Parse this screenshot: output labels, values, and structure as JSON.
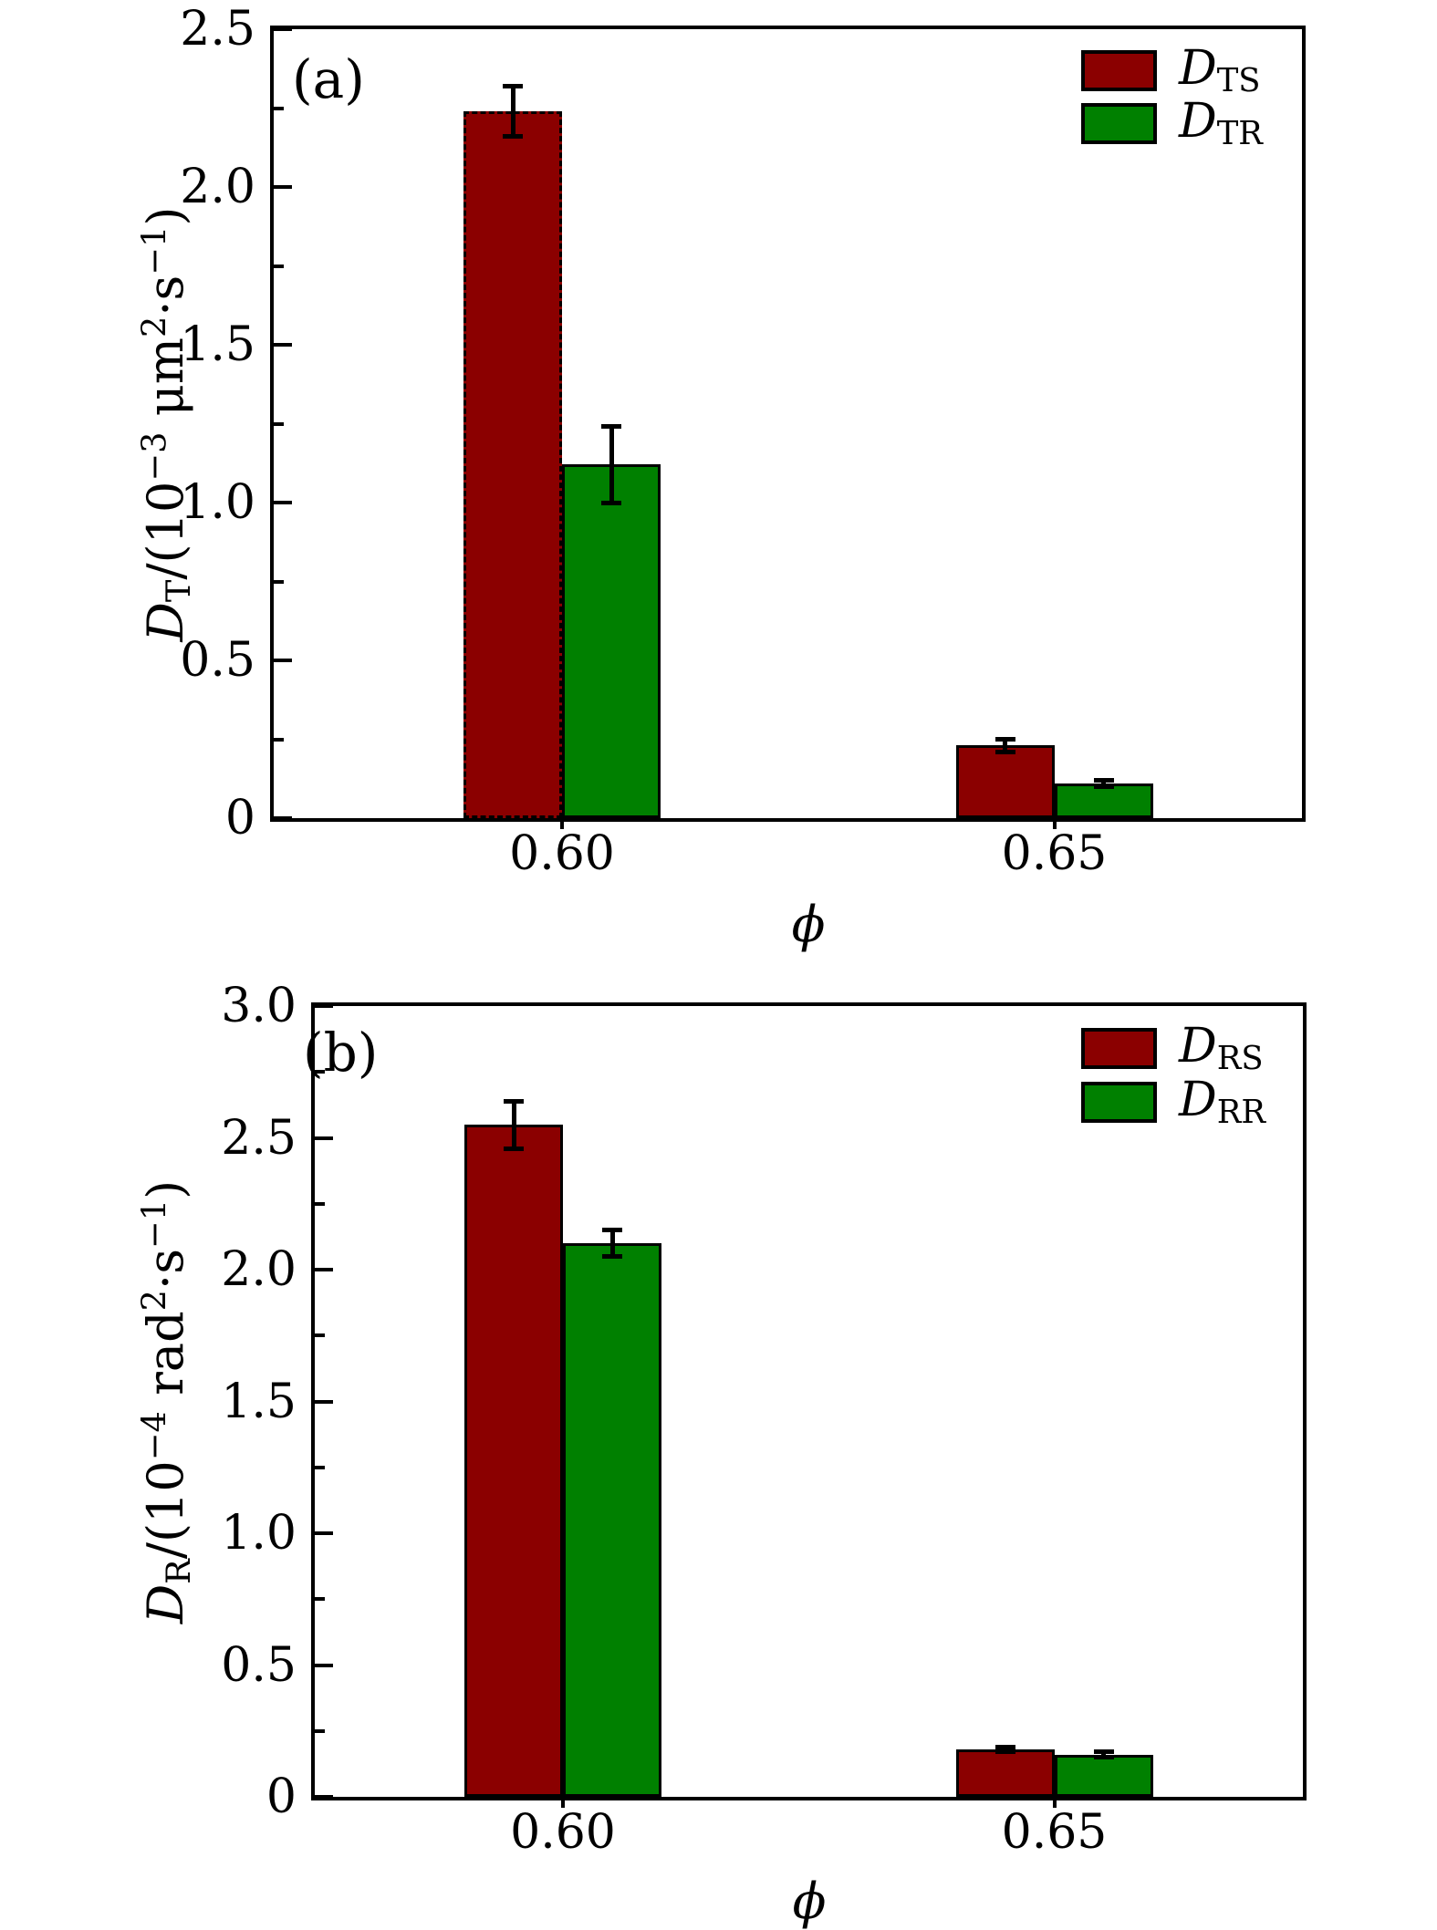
{
  "figure": {
    "background_color": "#ffffff",
    "axis_color": "#000000"
  },
  "panels": [
    {
      "tag": "(a)",
      "ylabel_parts": [
        [
          "i",
          "D"
        ],
        [
          "sub",
          "T"
        ],
        [
          "n",
          "/(10"
        ],
        [
          "sup",
          "−3"
        ],
        [
          "n",
          " μm"
        ],
        [
          "sup",
          "2"
        ],
        [
          "n",
          "·s"
        ],
        [
          "sup",
          "−1"
        ],
        [
          "n",
          ")"
        ]
      ],
      "xlabel_parts": [
        [
          "i",
          "ϕ"
        ]
      ],
      "y_ticks": [
        {
          "v": 2.5,
          "label": "2.5"
        },
        {
          "v": 2.0,
          "label": "2.0"
        },
        {
          "v": 1.5,
          "label": "1.5"
        },
        {
          "v": 1.0,
          "label": "1.0"
        },
        {
          "v": 0.5,
          "label": "0.5"
        },
        {
          "v": 0,
          "label": "0"
        }
      ],
      "y_minor_ticks": [
        2.25,
        1.75,
        1.25,
        0.75,
        0.25
      ],
      "x_tick_labels": [
        "0.60",
        "0.65"
      ],
      "legend": [
        {
          "name": "D_TS",
          "parts": [
            [
              "i",
              "D"
            ],
            [
              "sub",
              "TS"
            ]
          ]
        },
        {
          "name": "D_TR",
          "parts": [
            [
              "i",
              "D"
            ],
            [
              "sub",
              "TR"
            ]
          ]
        }
      ]
    },
    {
      "tag": "(b)",
      "ylabel_parts": [
        [
          "i",
          "D"
        ],
        [
          "sub",
          "R"
        ],
        [
          "n",
          "/(10"
        ],
        [
          "sup",
          "−4"
        ],
        [
          "n",
          " rad"
        ],
        [
          "sup",
          "2"
        ],
        [
          "n",
          "·s"
        ],
        [
          "sup",
          "−1"
        ],
        [
          "n",
          ")"
        ]
      ],
      "xlabel_parts": [
        [
          "i",
          "ϕ"
        ]
      ],
      "y_ticks": [
        {
          "v": 3.0,
          "label": "3.0"
        },
        {
          "v": 2.5,
          "label": "2.5"
        },
        {
          "v": 2.0,
          "label": "2.0"
        },
        {
          "v": 1.5,
          "label": "1.5"
        },
        {
          "v": 1.0,
          "label": "1.0"
        },
        {
          "v": 0.5,
          "label": "0.5"
        },
        {
          "v": 0,
          "label": "0"
        }
      ],
      "y_minor_ticks": [
        2.75,
        2.25,
        1.75,
        1.25,
        0.75,
        0.25
      ],
      "x_tick_labels": [
        "0.60",
        "0.65"
      ],
      "legend": [
        {
          "name": "D_RS",
          "parts": [
            [
              "i",
              "D"
            ],
            [
              "sub",
              "RS"
            ]
          ]
        },
        {
          "name": "D_RR",
          "parts": [
            [
              "i",
              "D"
            ],
            [
              "sub",
              "RR"
            ]
          ]
        }
      ]
    }
  ],
  "chart_data": [
    {
      "type": "bar",
      "panel": "(a)",
      "title": "",
      "xlabel": "ϕ",
      "ylabel": "D_T/(10^−3 μm^2·s^−1)",
      "categories": [
        "0.60",
        "0.65"
      ],
      "series": [
        {
          "name": "D_TS",
          "color": "#8b0000",
          "values": [
            2.24,
            0.23
          ],
          "errors": [
            0.08,
            0.02
          ]
        },
        {
          "name": "D_TR",
          "color": "#008000",
          "values": [
            1.12,
            0.11
          ],
          "errors": [
            0.12,
            0.01
          ]
        }
      ],
      "ylim": [
        0,
        2.5
      ],
      "y_major_step": 0.5,
      "y_minor_step": 0.25,
      "grid": false,
      "legend_position": "top-right",
      "error_bars": true
    },
    {
      "type": "bar",
      "panel": "(b)",
      "title": "",
      "xlabel": "ϕ",
      "ylabel": "D_R/(10^−4 rad^2·s^−1)",
      "categories": [
        "0.60",
        "0.65"
      ],
      "series": [
        {
          "name": "D_RS",
          "color": "#8b0000",
          "values": [
            2.55,
            0.18
          ],
          "errors": [
            0.09,
            0.01
          ]
        },
        {
          "name": "D_RR",
          "color": "#008000",
          "values": [
            2.1,
            0.16
          ],
          "errors": [
            0.05,
            0.01
          ]
        }
      ],
      "ylim": [
        0,
        3.0
      ],
      "y_major_step": 0.5,
      "y_minor_step": 0.25,
      "grid": false,
      "legend_position": "top-right",
      "error_bars": true
    }
  ]
}
